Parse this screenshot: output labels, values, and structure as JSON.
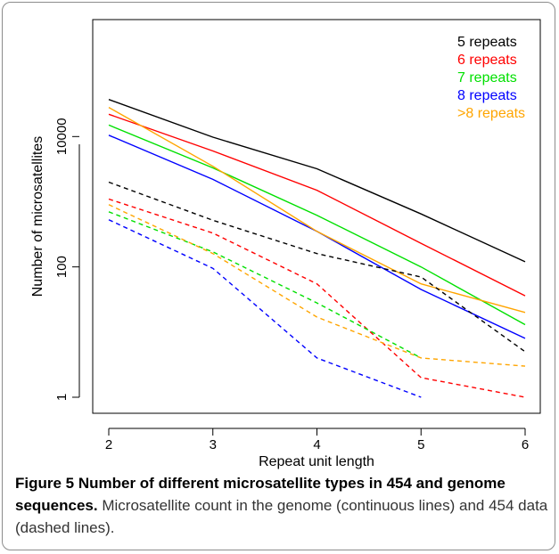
{
  "chart_data": {
    "type": "line",
    "x": [
      2,
      3,
      4,
      5,
      6
    ],
    "xlabel": "Repeat unit length",
    "ylabel": "Number of microsatellites",
    "xlim": [
      2,
      6
    ],
    "ylim": [
      1,
      500000
    ],
    "y_scale": "log",
    "x_ticks": [
      2,
      3,
      4,
      5,
      6
    ],
    "y_ticks": [
      {
        "value": 1,
        "label": "1"
      },
      {
        "value": 100,
        "label": "100"
      },
      {
        "value": 10000,
        "label": "10000"
      }
    ],
    "legend_position": "top-right",
    "legend": [
      {
        "label": "5 repeats",
        "color": "#000000"
      },
      {
        "label": "6 repeats",
        "color": "#ff0000"
      },
      {
        "label": "7 repeats",
        "color": "#00e000"
      },
      {
        "label": "8 repeats",
        "color": "#0000ff"
      },
      {
        "label": ">8 repeats",
        "color": "#ffa500"
      }
    ],
    "series": [
      {
        "group": "genome",
        "style": "solid",
        "color": "#000000",
        "values": [
          37000,
          9800,
          3200,
          650,
          120
        ]
      },
      {
        "group": "genome",
        "style": "solid",
        "color": "#ff0000",
        "values": [
          22000,
          6000,
          1500,
          230,
          36
        ]
      },
      {
        "group": "genome",
        "style": "solid",
        "color": "#00e000",
        "values": [
          15000,
          3300,
          620,
          100,
          13
        ]
      },
      {
        "group": "genome",
        "style": "solid",
        "color": "#0000ff",
        "values": [
          10500,
          2200,
          350,
          45,
          8
        ]
      },
      {
        "group": "genome",
        "style": "solid",
        "color": "#ffa500",
        "values": [
          28000,
          3500,
          350,
          55,
          20
        ]
      },
      {
        "group": "454",
        "style": "dashed",
        "color": "#000000",
        "values": [
          2000,
          520,
          160,
          70,
          5
        ]
      },
      {
        "group": "454",
        "style": "dashed",
        "color": "#ff0000",
        "values": [
          1100,
          330,
          55,
          2,
          1
        ]
      },
      {
        "group": "454",
        "style": "dashed",
        "color": "#00e000",
        "values": [
          700,
          170,
          28,
          4,
          null
        ]
      },
      {
        "group": "454",
        "style": "dashed",
        "color": "#0000ff",
        "values": [
          530,
          95,
          4,
          1,
          null
        ]
      },
      {
        "group": "454",
        "style": "dashed",
        "color": "#ffa500",
        "values": [
          900,
          160,
          17,
          4,
          3
        ]
      }
    ]
  },
  "caption": {
    "bold": "Figure 5 Number of different microsatellite types in 454 and genome sequences.",
    "text": "Microsatellite count in the genome (continuous lines) and 454 data (dashed lines)."
  }
}
